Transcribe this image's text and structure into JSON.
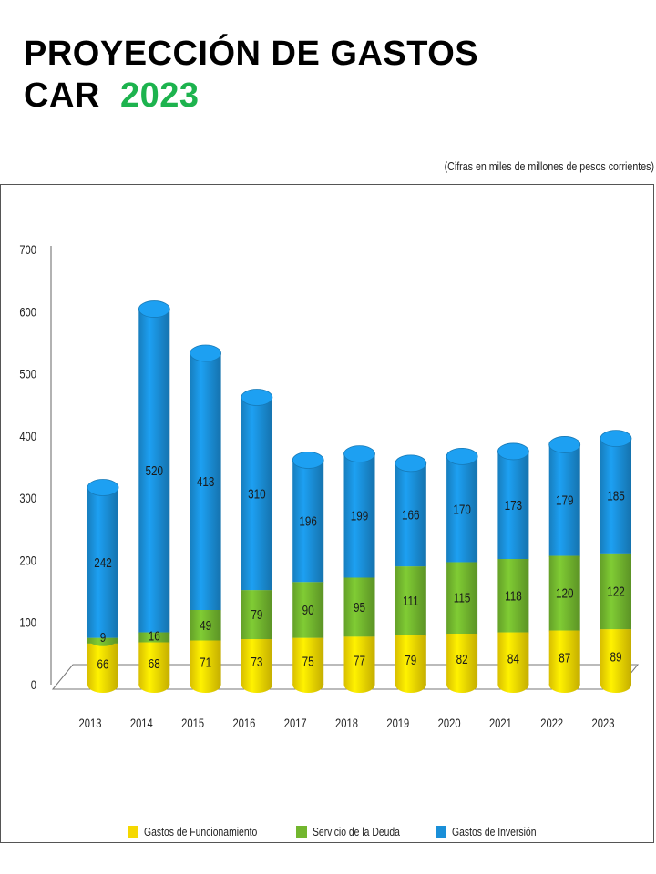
{
  "header": {
    "title_line1": "PROYECCIÓN DE GASTOS",
    "title_line2_prefix": "CAR",
    "title_line2_year": "2023"
  },
  "units_note": "(Cifras en miles de millones de pesos corrientes)",
  "colors": {
    "funcionamiento": "#f5d800",
    "deuda": "#72b62e",
    "inversion": "#1a8fd8",
    "title_year": "#1db34e"
  },
  "chart_data": {
    "type": "bar",
    "stacked": true,
    "categories": [
      "2013",
      "2014",
      "2015",
      "2016",
      "2017",
      "2018",
      "2019",
      "2020",
      "2021",
      "2022",
      "2023"
    ],
    "series": [
      {
        "name": "Gastos de Funcionamiento",
        "values": [
          66,
          68,
          71,
          73,
          75,
          77,
          79,
          82,
          84,
          87,
          89
        ]
      },
      {
        "name": "Servicio de la Deuda",
        "values": [
          9,
          16,
          49,
          79,
          90,
          95,
          111,
          115,
          118,
          120,
          122
        ]
      },
      {
        "name": "Gastos de Inversión",
        "values": [
          242,
          520,
          413,
          310,
          196,
          199,
          166,
          170,
          173,
          179,
          185
        ]
      }
    ],
    "y_ticks": [
      "0",
      "100",
      "200",
      "300",
      "400",
      "500",
      "600",
      "700"
    ],
    "ylim": [
      0,
      700
    ],
    "legend_position": "bottom"
  }
}
